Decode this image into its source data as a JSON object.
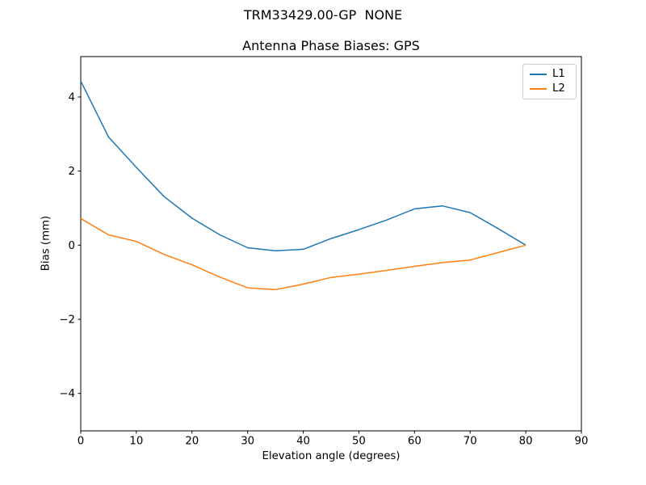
{
  "figure": {
    "suptitle": "TRM33429.00-GP  NONE",
    "background": "#ffffff"
  },
  "chart_data": {
    "type": "line",
    "title": "Antenna Phase Biases: GPS",
    "xlabel": "Elevation angle (degrees)",
    "ylabel": "Bias (mm)",
    "xlim": [
      0,
      90
    ],
    "ylim": [
      -5.01,
      5.09
    ],
    "grid": false,
    "axis_color": "#000000",
    "xticks": {
      "values": [
        0,
        10,
        20,
        30,
        40,
        50,
        60,
        70,
        80,
        90
      ],
      "labels": [
        "0",
        "10",
        "20",
        "30",
        "40",
        "50",
        "60",
        "70",
        "80",
        "90"
      ]
    },
    "yticks": {
      "values": [
        4,
        2,
        0,
        -2,
        -4
      ],
      "labels": [
        "4",
        "2",
        "0",
        "−2",
        "−4"
      ]
    },
    "legend": {
      "position": "upper right",
      "entries": [
        "L1",
        "L2"
      ]
    },
    "x": [
      0,
      5,
      10,
      15,
      20,
      25,
      30,
      35,
      40,
      45,
      50,
      55,
      60,
      65,
      70,
      75,
      80
    ],
    "series": [
      {
        "name": "L1",
        "color": "#1f77b4",
        "values": [
          4.43,
          2.92,
          2.1,
          1.31,
          0.73,
          0.28,
          -0.07,
          -0.15,
          -0.11,
          0.18,
          0.42,
          0.68,
          0.98,
          1.06,
          0.88,
          0.45,
          0.0
        ]
      },
      {
        "name": "L2",
        "color": "#ff7f0e",
        "values": [
          0.72,
          0.28,
          0.1,
          -0.25,
          -0.53,
          -0.86,
          -1.15,
          -1.2,
          -1.05,
          -0.87,
          -0.78,
          -0.68,
          -0.57,
          -0.47,
          -0.4,
          -0.2,
          0.0
        ]
      }
    ]
  }
}
